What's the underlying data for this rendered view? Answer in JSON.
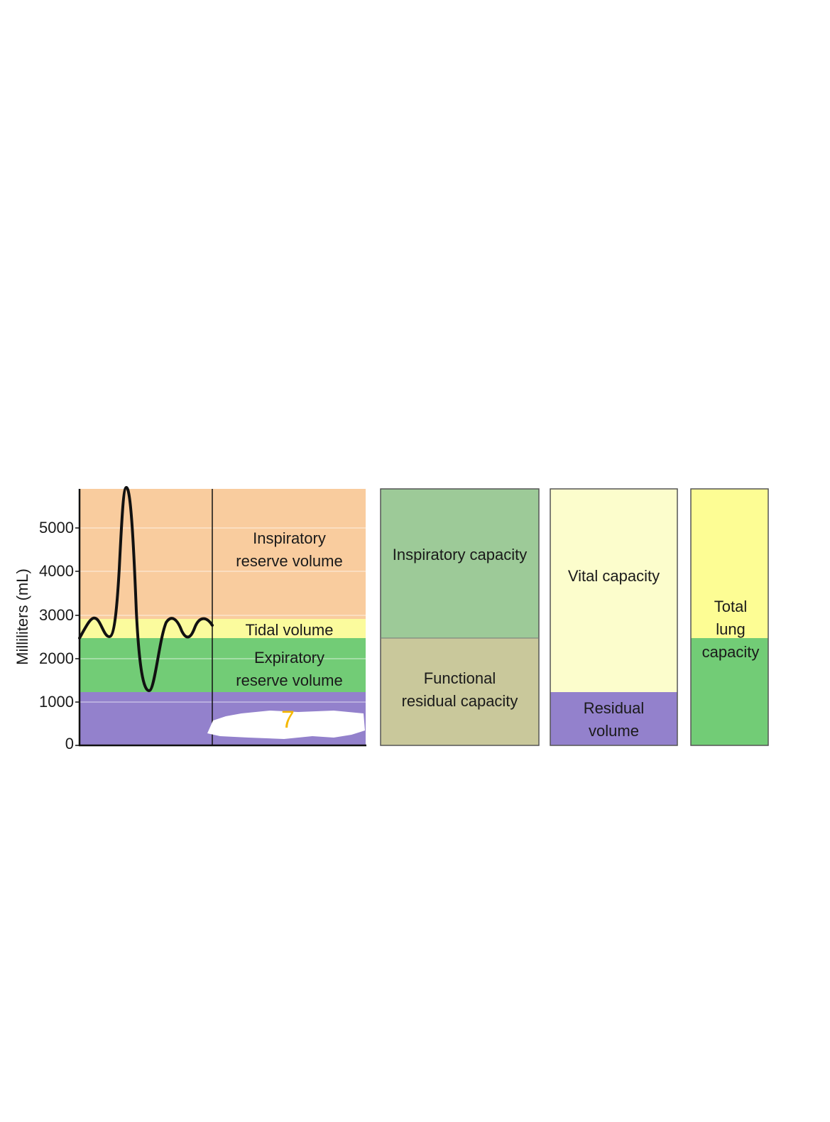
{
  "y_axis": {
    "label": "Milliliters (mL)",
    "ticks": [
      "5000",
      "4000",
      "3000",
      "2000",
      "1000",
      "0"
    ]
  },
  "panel_a": {
    "inspiratory_reserve_volume": [
      "Inspiratory",
      "reserve volume"
    ],
    "tidal_volume": "Tidal volume",
    "expiratory_reserve_volume": [
      "Expiratory",
      "reserve volume"
    ],
    "annotation": "7"
  },
  "panel_b": {
    "inspiratory_capacity": "Inspiratory capacity",
    "functional_residual_capacity": [
      "Functional",
      "residual capacity"
    ],
    "vital_capacity": "Vital capacity",
    "residual_volume": [
      "Residual",
      "volume"
    ],
    "total_lung_capacity": [
      "Total",
      "lung",
      "capacity"
    ]
  },
  "colors": {
    "irv": "#f9cc9e",
    "tidal": "#fbfb9d",
    "erv": "#72cc76",
    "residual": "#9381cc",
    "inspiratory_capacity": "#9dca98",
    "frc": "#c9c89b",
    "vital_capacity": "#fcfdcc",
    "tlc_top": "#fdfd94",
    "tlc_bottom": "#72cc76"
  }
}
